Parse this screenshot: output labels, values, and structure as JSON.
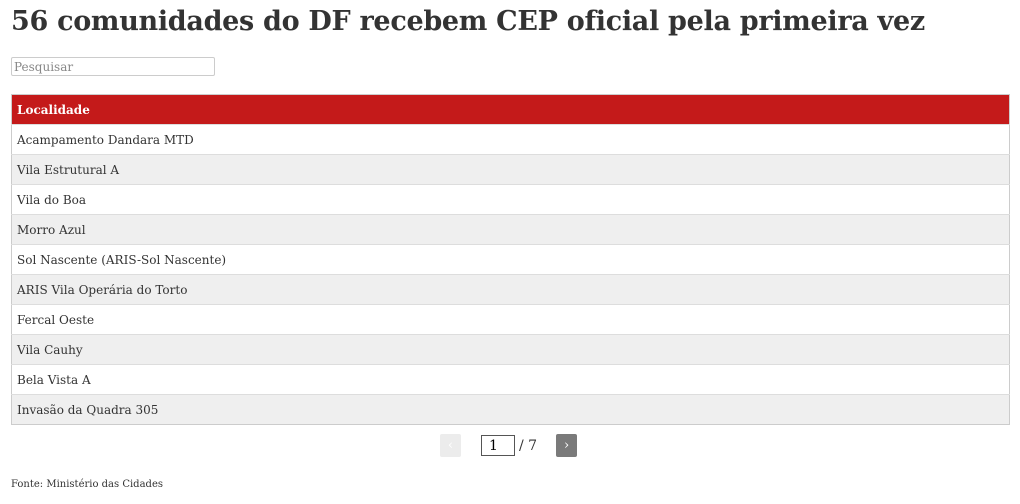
{
  "title": "56 comunidades do DF recebem CEP oficial pela primeira vez",
  "search": {
    "placeholder": "Pesquisar",
    "value": ""
  },
  "table": {
    "header": "Localidade",
    "rows": [
      "Acampamento Dandara MTD",
      "Vila Estrutural A",
      "Vila do Boa",
      "Morro Azul",
      "Sol Nascente (ARIS-Sol Nascente)",
      "ARIS Vila Operária do Torto",
      "Fercal Oeste",
      "Vila Cauhy",
      "Bela Vista A",
      "Invasão da Quadra 305"
    ]
  },
  "pagination": {
    "prev": "‹",
    "next": "›",
    "current": "1",
    "total": "/ 7"
  },
  "source": "Fonte: Ministério das Cidades",
  "colors": {
    "header": "#c41a1a"
  }
}
